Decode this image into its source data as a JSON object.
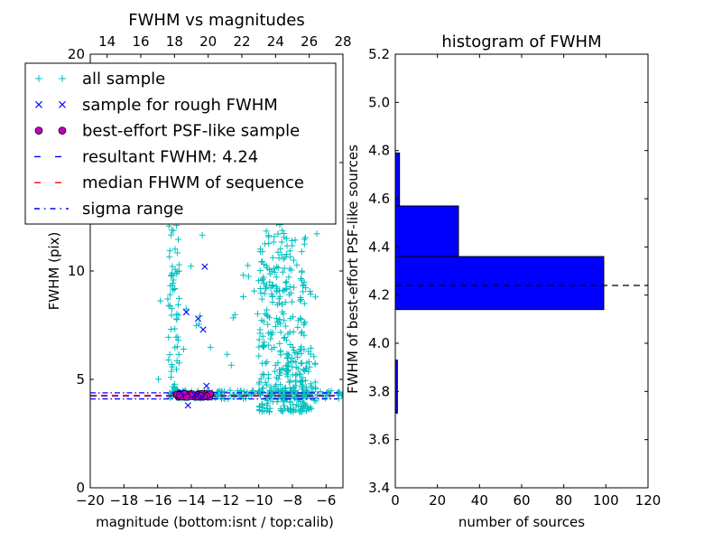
{
  "chart_data": [
    {
      "type": "scatter",
      "title": "FWHM vs magnitudes",
      "xlabel": "magnitude (bottom:isnt / top:calib)",
      "ylabel": "FWHM (pix)",
      "xlim": [
        -20,
        -5
      ],
      "ylim": [
        0,
        20
      ],
      "xticks": [
        -20,
        -18,
        -16,
        -14,
        -12,
        -10,
        -8,
        -6
      ],
      "xtick_labels": [
        "−20",
        "−18",
        "−16",
        "−14",
        "−12",
        "−10",
        "−8",
        "−6"
      ],
      "yticks": [
        0,
        5,
        10,
        15,
        20
      ],
      "ytick_labels": [
        "0",
        "5",
        "10",
        "15",
        "20"
      ],
      "top_xlim": [
        13,
        28
      ],
      "top_xticks": [
        14,
        16,
        18,
        20,
        22,
        24,
        26,
        28
      ],
      "top_xtick_labels": [
        "14",
        "16",
        "18",
        "20",
        "22",
        "24",
        "26",
        "28"
      ],
      "grid": false,
      "legend_position": "upper-left",
      "legend": [
        {
          "label": "all sample",
          "marker": "plus",
          "color": "#00bfbf"
        },
        {
          "label": "sample for rough FWHM",
          "marker": "x",
          "color": "#0000ff"
        },
        {
          "label": "best-effort PSF-like sample",
          "marker": "circle",
          "color": "#bf00bf"
        },
        {
          "label": "resultant FWHM: 4.24",
          "marker": "dashed",
          "color": "#0000ff"
        },
        {
          "label": "median FHWM of sequence",
          "marker": "dashed",
          "color": "#ff0000"
        },
        {
          "label": "sigma range",
          "marker": "dashdot",
          "color": "#0000ff"
        }
      ],
      "resultant_fwhm": 4.24,
      "median_fwhm": 4.26,
      "sigma_range": [
        4.1,
        4.38
      ],
      "sample_for_rough_fwhm": [
        {
          "x": -13.2,
          "y": 10.2
        },
        {
          "x": -13.6,
          "y": 7.8
        },
        {
          "x": -13.3,
          "y": 7.3
        },
        {
          "x": -14.3,
          "y": 8.1
        },
        {
          "x": -13.1,
          "y": 4.7
        },
        {
          "x": -14.2,
          "y": 3.8
        },
        {
          "x": -14.6,
          "y": 4.4
        },
        {
          "x": -13.8,
          "y": 4.3
        },
        {
          "x": -13.4,
          "y": 4.2
        }
      ],
      "best_effort_sample": {
        "x_range": [
          -15.0,
          -12.8
        ],
        "y_range": [
          4.18,
          4.35
        ]
      },
      "all_sample_regions": [
        {
          "x_range": [
            -15.4,
            -5.0
          ],
          "y_range": [
            4.1,
            4.5
          ],
          "n": 200
        },
        {
          "x_range": [
            -15.4,
            -14.7
          ],
          "y_range": [
            4.3,
            16.0
          ],
          "n": 90
        },
        {
          "x_range": [
            -10.0,
            -7.2
          ],
          "y_range": [
            3.5,
            12.0
          ],
          "n": 280
        },
        {
          "x_range": [
            -9.8,
            -8.4
          ],
          "y_range": [
            9.0,
            19.8
          ],
          "n": 70
        },
        {
          "x_range": [
            -8.5,
            -6.6
          ],
          "y_range": [
            3.5,
            6.5
          ],
          "n": 60
        },
        {
          "x_range": [
            -16.0,
            -6.5
          ],
          "y_range": [
            4.8,
            17.0
          ],
          "n": 60
        }
      ]
    },
    {
      "type": "bar",
      "orientation": "horizontal",
      "title": "histogram of FWHM",
      "xlabel": "number of sources",
      "ylabel": "FWHM of best-effort PSF-like sources",
      "xlim": [
        0,
        120
      ],
      "ylim": [
        3.4,
        5.2
      ],
      "xticks": [
        0,
        20,
        40,
        60,
        80,
        100,
        120
      ],
      "xtick_labels": [
        "0",
        "20",
        "40",
        "60",
        "80",
        "100",
        "120"
      ],
      "yticks": [
        3.4,
        3.6,
        3.8,
        4.0,
        4.2,
        4.4,
        4.6,
        4.8,
        5.0,
        5.2
      ],
      "ytick_labels": [
        "3.4",
        "3.6",
        "3.8",
        "4.0",
        "4.2",
        "4.4",
        "4.6",
        "4.8",
        "5.0",
        "5.2"
      ],
      "bars": [
        {
          "y0": 3.71,
          "y1": 3.93,
          "count": 1
        },
        {
          "y0": 4.14,
          "y1": 4.36,
          "count": 99
        },
        {
          "y0": 4.36,
          "y1": 4.57,
          "count": 30
        },
        {
          "y0": 4.57,
          "y1": 4.79,
          "count": 2
        }
      ],
      "bar_color": "#0000ff",
      "reference_line": 4.24
    }
  ]
}
